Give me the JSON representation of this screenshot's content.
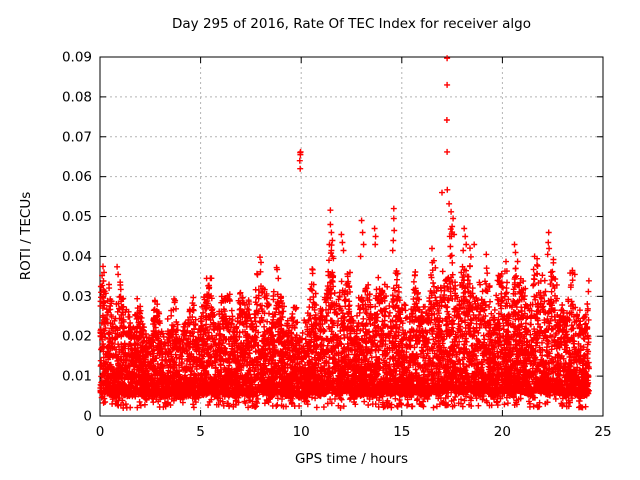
{
  "page": {
    "background": "#ffffff"
  },
  "chart_data": {
    "type": "scatter",
    "title": "Day 295 of 2016, Rate Of TEC Index for receiver algo",
    "xlabel": "GPS time / hours",
    "ylabel": "ROTI / TECUs",
    "xlim": [
      0,
      25
    ],
    "ylim": [
      0,
      0.09
    ],
    "xticks": [
      0,
      5,
      10,
      15,
      20,
      25
    ],
    "yticks": [
      0,
      0.01,
      0.02,
      0.03,
      0.04,
      0.05,
      0.06,
      0.07,
      0.08,
      0.09
    ],
    "grid": {
      "show": true,
      "color": "#b4b4b4"
    },
    "legend": "none",
    "border_color": "#000000",
    "marker": {
      "shape": "plus",
      "color": "#ff0000",
      "size": 7,
      "stroke_width": 1.4
    },
    "series_name": "ROTI",
    "data_x_range": [
      0.02,
      24.3
    ],
    "dense_band": {
      "seed": 1295,
      "n_points": 8200,
      "n_low_fringe": 380,
      "low_fringe_range": [
        0.002,
        0.0062
      ],
      "band_floor": 0.0035,
      "shape_power": 2.1,
      "envelope_step_hours": 0.5,
      "envelope_top": [
        0.034,
        0.036,
        0.033,
        0.03,
        0.028,
        0.027,
        0.028,
        0.029,
        0.027,
        0.028,
        0.031,
        0.034,
        0.031,
        0.032,
        0.03,
        0.034,
        0.038,
        0.034,
        0.036,
        0.028,
        0.025,
        0.035,
        0.033,
        0.04,
        0.038,
        0.035,
        0.031,
        0.036,
        0.033,
        0.04,
        0.031,
        0.034,
        0.033,
        0.036,
        0.042,
        0.044,
        0.043,
        0.04,
        0.038,
        0.035,
        0.038,
        0.04,
        0.036,
        0.038,
        0.041,
        0.038,
        0.033,
        0.035,
        0.031
      ]
    },
    "outlier_points": [
      [
        9.93,
        0.064
      ],
      [
        9.95,
        0.066
      ],
      [
        9.97,
        0.0662
      ],
      [
        9.96,
        0.0655
      ],
      [
        9.95,
        0.062
      ],
      [
        17.25,
        0.0897
      ],
      [
        17.25,
        0.083
      ],
      [
        17.24,
        0.0742
      ],
      [
        17.25,
        0.0662
      ],
      [
        17.26,
        0.0567
      ],
      [
        17.0,
        0.056
      ],
      [
        17.35,
        0.0532
      ],
      [
        17.45,
        0.0512
      ],
      [
        17.55,
        0.0495
      ],
      [
        17.5,
        0.0475
      ],
      [
        17.6,
        0.0455
      ],
      [
        11.45,
        0.0516
      ],
      [
        11.45,
        0.048
      ],
      [
        11.5,
        0.046
      ],
      [
        11.55,
        0.044
      ],
      [
        11.4,
        0.043
      ],
      [
        11.5,
        0.0415
      ],
      [
        11.6,
        0.0395
      ],
      [
        14.6,
        0.052
      ],
      [
        14.6,
        0.0495
      ],
      [
        14.62,
        0.0465
      ],
      [
        14.58,
        0.044
      ],
      [
        14.55,
        0.0415
      ],
      [
        12.0,
        0.0455
      ],
      [
        12.05,
        0.0435
      ],
      [
        12.1,
        0.0415
      ],
      [
        13.0,
        0.049
      ],
      [
        13.05,
        0.046
      ],
      [
        13.1,
        0.043
      ],
      [
        12.95,
        0.04
      ],
      [
        13.65,
        0.047
      ],
      [
        13.7,
        0.045
      ],
      [
        13.68,
        0.043
      ],
      [
        18.1,
        0.047
      ],
      [
        18.15,
        0.045
      ],
      [
        18.2,
        0.043
      ],
      [
        18.05,
        0.0415
      ],
      [
        18.6,
        0.043
      ],
      [
        22.3,
        0.046
      ],
      [
        22.28,
        0.0435
      ],
      [
        22.32,
        0.042
      ],
      [
        22.25,
        0.0405
      ],
      [
        0.15,
        0.0375
      ],
      [
        0.2,
        0.036
      ],
      [
        0.85,
        0.0374
      ],
      [
        0.9,
        0.0355
      ],
      [
        7.95,
        0.0398
      ],
      [
        8.0,
        0.0385
      ],
      [
        5.3,
        0.0345
      ],
      [
        20.6,
        0.043
      ],
      [
        20.65,
        0.041
      ],
      [
        21.6,
        0.04
      ],
      [
        19.2,
        0.0405
      ],
      [
        16.5,
        0.042
      ],
      [
        23.6,
        0.0355
      ]
    ]
  }
}
